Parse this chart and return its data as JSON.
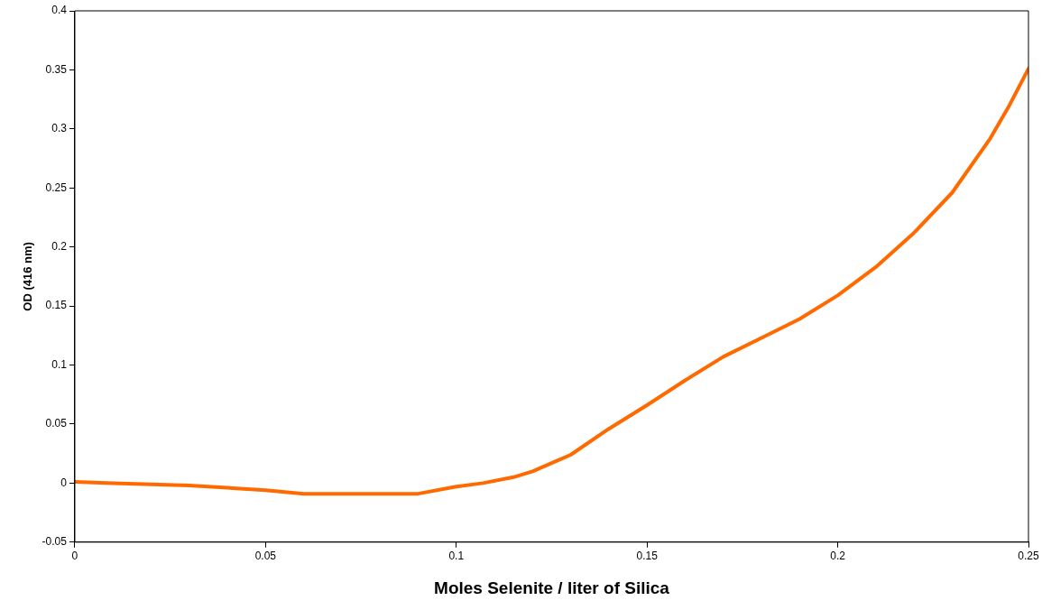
{
  "chart_data": {
    "type": "line",
    "xlabel": "Moles Selenite / liter of Silica",
    "ylabel": "OD (416 nm)",
    "x": [
      0,
      0.01,
      0.02,
      0.03,
      0.04,
      0.05,
      0.06,
      0.07,
      0.08,
      0.09,
      0.1,
      0.107,
      0.115,
      0.12,
      0.13,
      0.14,
      0.15,
      0.16,
      0.17,
      0.18,
      0.19,
      0.2,
      0.21,
      0.22,
      0.23,
      0.24,
      0.245,
      0.25
    ],
    "series": [
      {
        "color": "#ff6a00",
        "values": [
          0.001,
          0,
          -0.001,
          -0.002,
          -0.004,
          -0.006,
          -0.009,
          -0.009,
          -0.009,
          -0.009,
          -0.003,
          0,
          0.005,
          0.01,
          0.024,
          0.046,
          0.066,
          0.087,
          0.107,
          0.123,
          0.139,
          0.159,
          0.183,
          0.212,
          0.246,
          0.292,
          0.32,
          0.351
        ]
      }
    ],
    "xlim": [
      0,
      0.25
    ],
    "xticks": [
      0,
      0.05,
      0.1,
      0.15,
      0.2,
      0.25
    ],
    "ylim": [
      -0.05,
      0.4
    ],
    "yticks": [
      -0.05,
      0,
      0.05,
      0.1,
      0.15,
      0.2,
      0.25,
      0.3,
      0.35,
      0.4
    ],
    "grid": false,
    "legend": false,
    "marker": "none",
    "line_style": "solid"
  }
}
